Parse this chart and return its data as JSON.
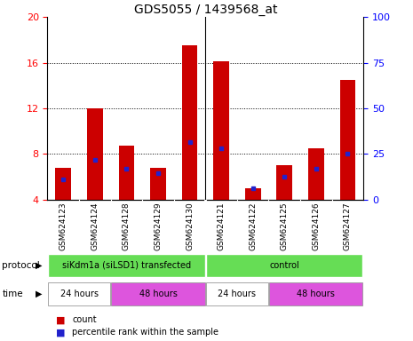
{
  "title": "GDS5055 / 1439568_at",
  "samples": [
    "GSM624123",
    "GSM624124",
    "GSM624128",
    "GSM624129",
    "GSM624130",
    "GSM624121",
    "GSM624122",
    "GSM624125",
    "GSM624126",
    "GSM624127"
  ],
  "red_values": [
    6.8,
    12.0,
    8.7,
    6.8,
    17.5,
    16.1,
    5.0,
    7.0,
    8.5,
    14.5
  ],
  "blue_values": [
    5.8,
    7.5,
    6.7,
    6.3,
    9.0,
    8.5,
    5.0,
    6.0,
    6.7,
    8.0
  ],
  "ylim_left": [
    4,
    20
  ],
  "ylim_right": [
    0,
    100
  ],
  "yticks_left": [
    4,
    8,
    12,
    16,
    20
  ],
  "yticks_right": [
    0,
    25,
    50,
    75,
    100
  ],
  "bar_color": "#cc0000",
  "marker_color": "#2222cc",
  "bg_color": "#ffffff",
  "label_bg": "#c8c8c8",
  "protocol_color": "#66dd55",
  "time_color_24": "#ffffff",
  "time_color_48": "#dd55dd",
  "protocol_label": "protocol",
  "time_label": "time",
  "legend_count": "count",
  "legend_pct": "percentile rank within the sample",
  "title_fontsize": 10,
  "tick_fontsize": 8,
  "label_fontsize": 6.5,
  "bar_width": 0.5,
  "group_separator": 4.5,
  "protocol_groups": [
    {
      "label": "siKdm1a (siLSD1) transfected",
      "start": 0,
      "end": 5
    },
    {
      "label": "control",
      "start": 5,
      "end": 10
    }
  ],
  "time_groups": [
    {
      "label": "24 hours",
      "start": 0,
      "end": 2,
      "color": "#ffffff"
    },
    {
      "label": "48 hours",
      "start": 2,
      "end": 5,
      "color": "#dd55dd"
    },
    {
      "label": "24 hours",
      "start": 5,
      "end": 7,
      "color": "#ffffff"
    },
    {
      "label": "48 hours",
      "start": 7,
      "end": 10,
      "color": "#dd55dd"
    }
  ]
}
